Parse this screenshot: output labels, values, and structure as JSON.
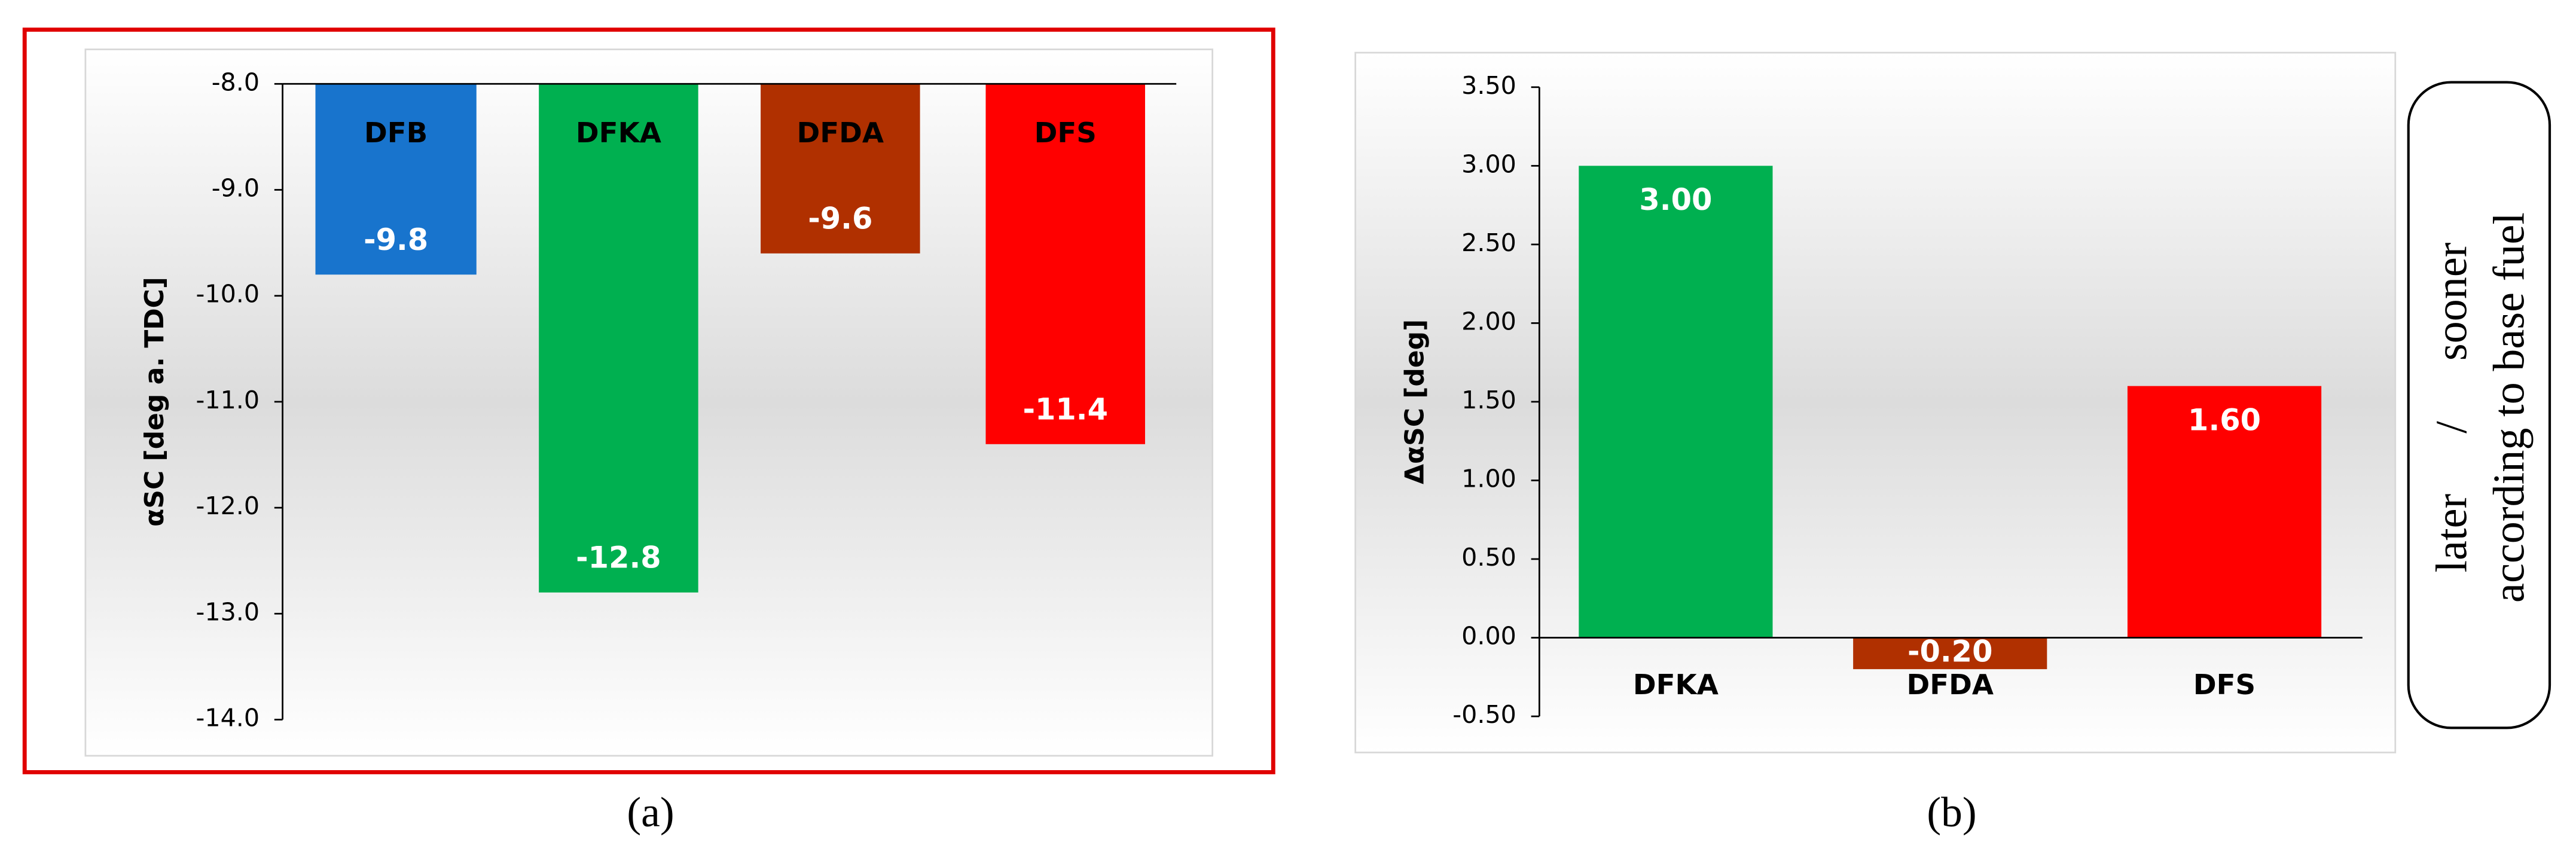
{
  "chart_data": [
    {
      "type": "bar",
      "caption": "(a)",
      "y_label": "αSC [deg a. TDC]",
      "categories": [
        "DFB",
        "DFKA",
        "DFDA",
        "DFS"
      ],
      "values": [
        -9.8,
        -12.8,
        -9.6,
        -11.4
      ],
      "colors": [
        "#1874cd",
        "#00b050",
        "#b03000",
        "#ff0000"
      ],
      "ylim": [
        -14,
        -8
      ],
      "yticks": [
        {
          "value": -8,
          "label": "-8.0"
        },
        {
          "value": -9,
          "label": "-9.0"
        },
        {
          "value": -10,
          "label": "-10.0"
        },
        {
          "value": -11,
          "label": "-11.0"
        },
        {
          "value": -12,
          "label": "-12.0"
        },
        {
          "value": -13,
          "label": "-13.0"
        },
        {
          "value": -14,
          "label": "-14.0"
        }
      ]
    },
    {
      "type": "bar",
      "caption": "(b)",
      "y_label": "ΔαSC [deg]",
      "categories": [
        "DFKA",
        "DFDA",
        "DFS"
      ],
      "values": [
        3,
        -0.2,
        1.6
      ],
      "value_labels": [
        "3.00",
        "-0.20",
        "1.60"
      ],
      "colors": [
        "#00b050",
        "#b03000",
        "#ff0000"
      ],
      "ylim": [
        -0.5,
        3.5
      ],
      "yticks": [
        {
          "value": 3.5,
          "label": "3.50"
        },
        {
          "value": 3,
          "label": "3.00"
        },
        {
          "value": 2.5,
          "label": "2.50"
        },
        {
          "value": 2,
          "label": "2.00"
        },
        {
          "value": 1.5,
          "label": "1.50"
        },
        {
          "value": 1,
          "label": "1.00"
        },
        {
          "value": 0.5,
          "label": "0.50"
        },
        {
          "value": 0,
          "label": "0.00"
        },
        {
          "value": -0.5,
          "label": "-0.50"
        }
      ]
    }
  ],
  "side_note": {
    "line1": "later / sooner",
    "line2": "according to base fuel"
  }
}
